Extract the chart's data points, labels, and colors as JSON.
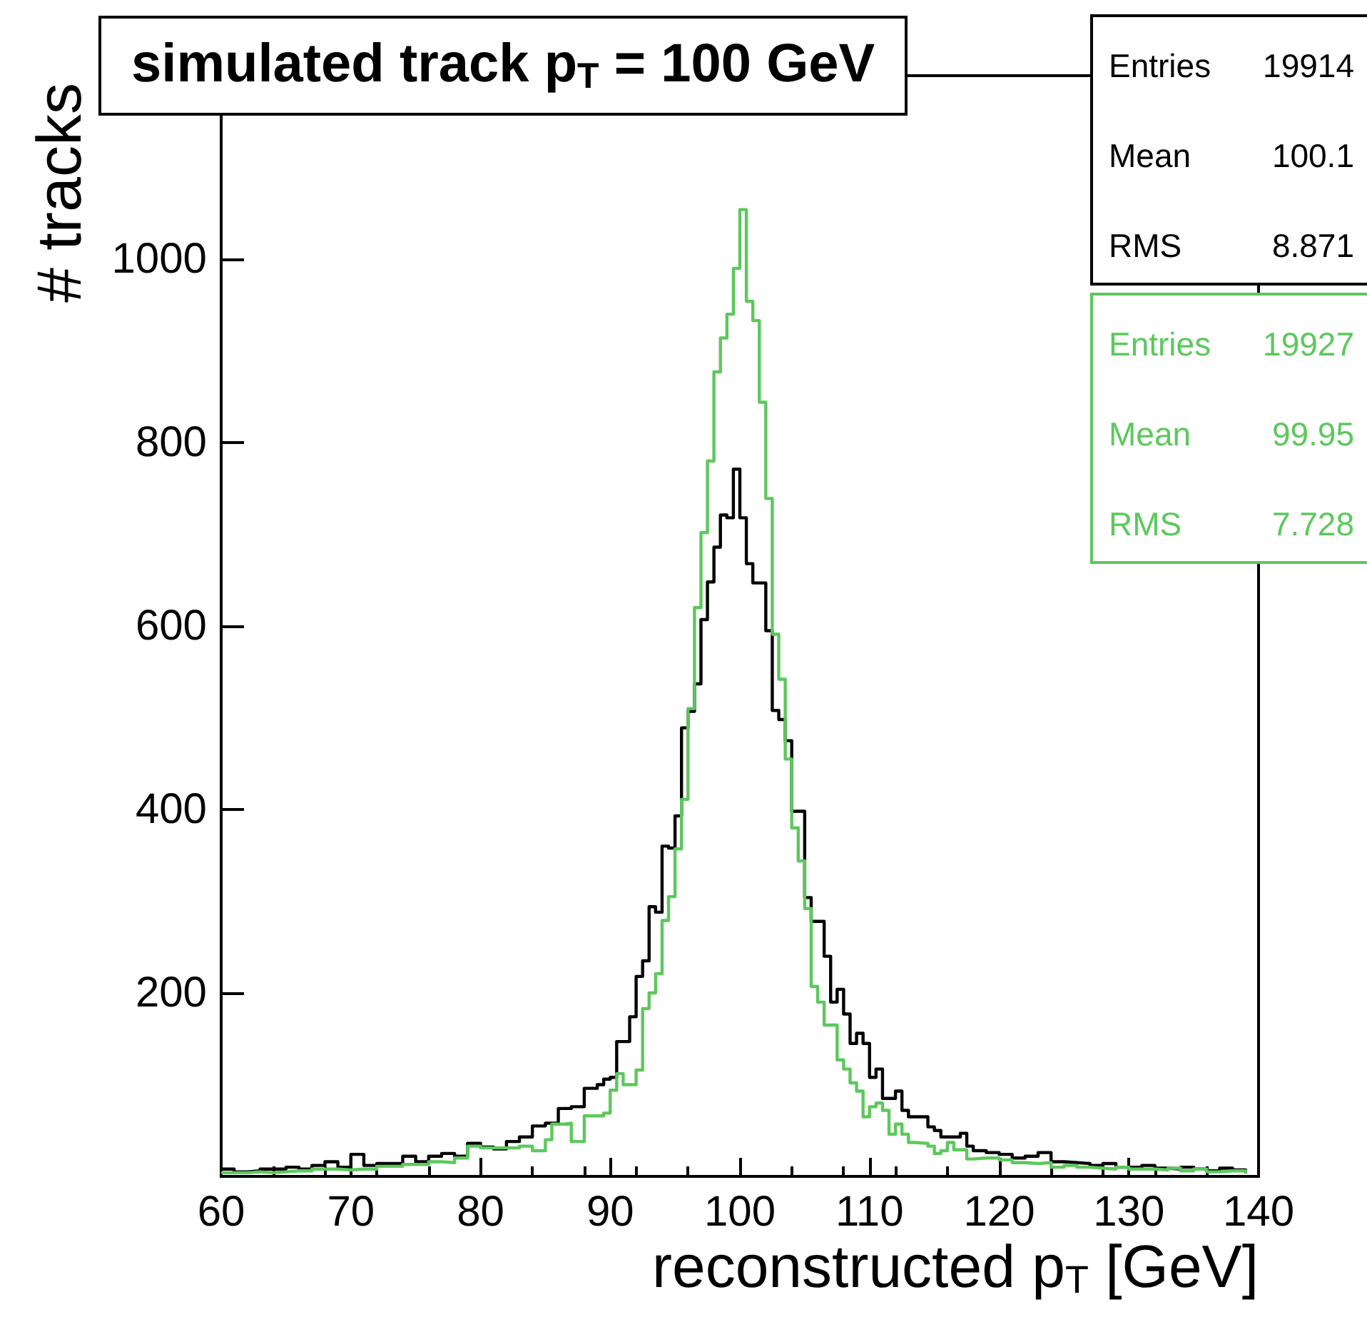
{
  "chart_data": {
    "type": "step",
    "title": "simulated track p$_{T}$ = 100 GeV",
    "xlabel": "reconstructed p$_{T}$ [GeV]",
    "ylabel": "# tracks",
    "annotations": [
      "Entries 19914",
      "Mean 100.1",
      "RMS 8.871",
      "Entries 19927",
      "Mean 99.95",
      "RMS 7.728"
    ],
    "xlim": [
      60,
      140
    ],
    "xticks": [
      60,
      70,
      80,
      90,
      100,
      110,
      120,
      130,
      140
    ],
    "ylim": [
      0,
      1200
    ],
    "yticks": [
      {
        "value": 0,
        "label": null
      },
      200,
      400,
      600,
      800,
      1000
    ],
    "series": [
      {
        "color": "#000000",
        "x": [
          60,
          61,
          62,
          63,
          64,
          65,
          66,
          67,
          68,
          69,
          70,
          71,
          72,
          73,
          74,
          75,
          76,
          77,
          78,
          79,
          80,
          81,
          82,
          83,
          84,
          85,
          86,
          87,
          88,
          89,
          89.5,
          90,
          90.5,
          91.5,
          92,
          92.5,
          93,
          93.5,
          94,
          94.5,
          95,
          95.5,
          96,
          96.5,
          97,
          97.5,
          98,
          98.5,
          99,
          99.5,
          100,
          100.5,
          101,
          102,
          102.5,
          103,
          103.5,
          104,
          105,
          105.5,
          106.5,
          107,
          107.5,
          108,
          108.5,
          109,
          109.5,
          110,
          110.5,
          111,
          112,
          112.5,
          113,
          114.5,
          115,
          115.5,
          117,
          117.5,
          118,
          119,
          120,
          121,
          122,
          123,
          124,
          125,
          126,
          127,
          128,
          129,
          130,
          131,
          132,
          133,
          134,
          135,
          136,
          137,
          138,
          139
        ],
        "values": [
          8,
          5,
          6,
          8,
          8,
          10,
          8,
          12,
          16,
          10,
          24,
          12,
          14,
          14,
          22,
          16,
          22,
          25,
          22,
          36,
          32,
          30,
          38,
          43,
          55,
          58,
          74,
          76,
          96,
          100,
          106,
          108,
          147,
          174,
          218,
          235,
          294,
          288,
          360,
          358,
          393,
          489,
          507,
          537,
          607,
          648,
          686,
          721,
          718,
          771,
          718,
          668,
          647,
          595,
          508,
          498,
          475,
          398,
          304,
          278,
          240,
          190,
          204,
          177,
          145,
          156,
          145,
          108,
          117,
          85,
          93,
          72,
          65,
          54,
          50,
          43,
          47,
          33,
          28,
          26,
          24,
          20,
          22,
          26,
          16,
          15,
          14,
          12,
          14,
          10,
          10,
          12,
          9,
          8,
          10,
          8,
          6,
          9,
          7,
          4
        ]
      },
      {
        "color": "#5cc85c",
        "x": [
          60,
          61,
          62,
          63,
          64,
          65,
          66,
          67,
          68,
          69,
          70,
          71,
          72,
          74,
          76,
          77,
          78,
          79,
          80,
          82,
          83,
          84,
          85,
          85.5,
          86.5,
          87,
          88,
          89.5,
          90,
          90.5,
          91,
          92,
          92.5,
          93,
          93.5,
          94,
          94.5,
          95,
          95.5,
          96,
          96.5,
          97,
          97.5,
          98,
          98.5,
          99,
          99.5,
          100,
          100.5,
          101,
          101.5,
          102,
          102.5,
          103,
          103.5,
          104,
          104.5,
          105,
          105.5,
          106,
          106.5,
          107.5,
          108,
          108.5,
          109,
          109.5,
          110,
          110.5,
          111,
          111.5,
          112,
          112.5,
          113,
          113.5,
          114.5,
          115,
          115.5,
          116,
          116.5,
          117.5,
          118,
          119,
          120,
          121,
          122,
          123,
          124,
          125,
          126,
          127,
          128,
          129,
          130,
          131,
          132,
          133,
          134,
          135,
          136,
          137,
          138,
          139
        ],
        "values": [
          4,
          4,
          5,
          4,
          5,
          6,
          6,
          8,
          8,
          7,
          8,
          8,
          11,
          13,
          16,
          15,
          20,
          33,
          31,
          31,
          33,
          28,
          40,
          57,
          58,
          38,
          66,
          69,
          94,
          112,
          100,
          116,
          183,
          200,
          221,
          279,
          305,
          357,
          411,
          510,
          620,
          702,
          780,
          877,
          914,
          940,
          990,
          1054,
          954,
          933,
          844,
          739,
          591,
          542,
          455,
          380,
          344,
          292,
          207,
          190,
          165,
          127,
          117,
          102,
          93,
          65,
          76,
          80,
          72,
          46,
          57,
          46,
          37,
          36,
          33,
          25,
          28,
          37,
          29,
          19,
          20,
          20,
          18,
          15,
          14,
          15,
          10,
          12,
          10,
          9,
          8,
          10,
          8,
          8,
          7,
          9,
          6,
          8,
          5,
          6,
          6,
          3
        ]
      }
    ]
  }
}
